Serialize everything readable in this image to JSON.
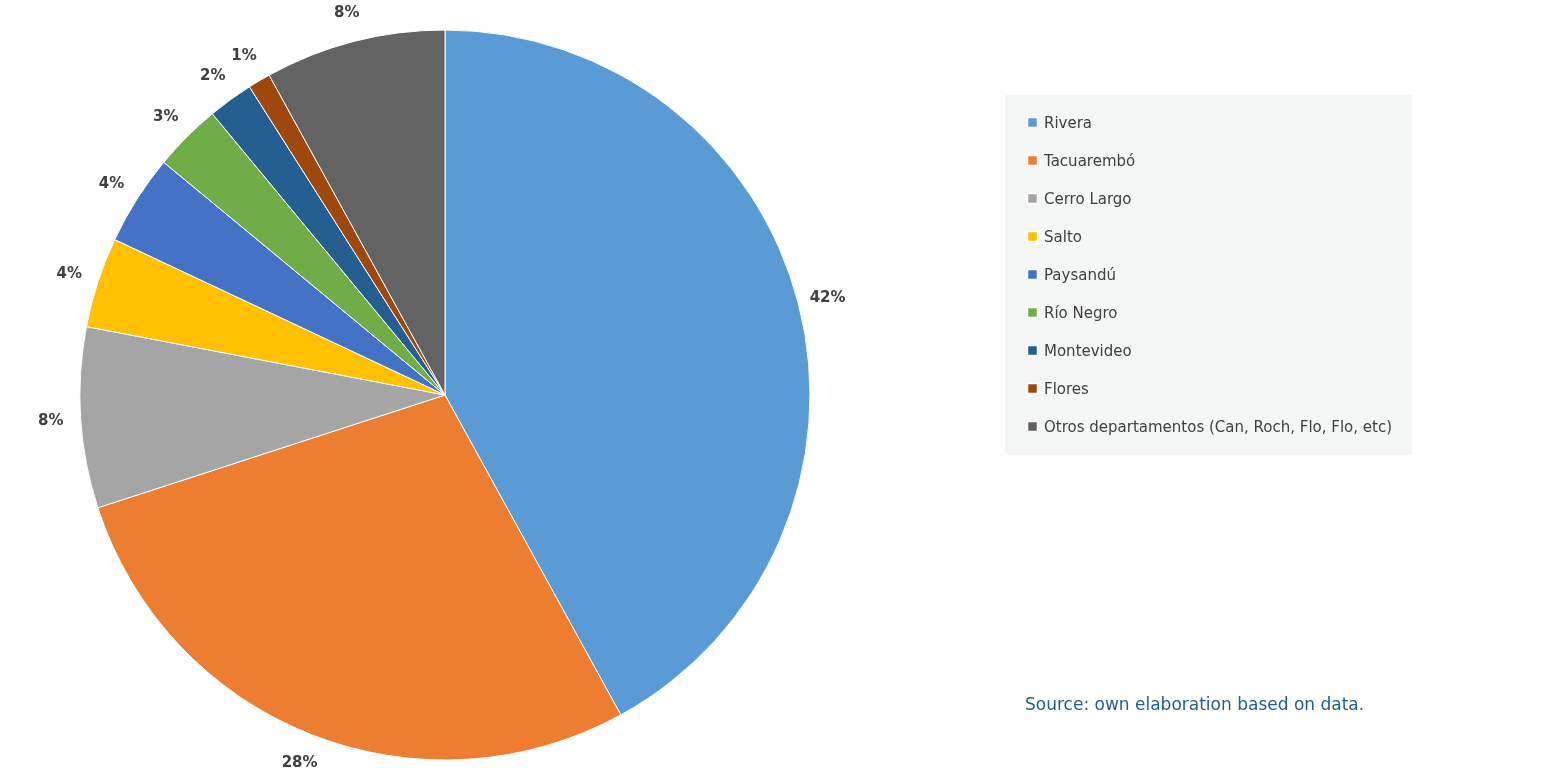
{
  "chart_data": {
    "type": "pie",
    "categories": [
      "Rivera",
      "Tacuarembó",
      "Cerro Largo",
      "Salto",
      "Paysandú",
      "Río Negro",
      "Montevideo",
      "Flores",
      "Otros departamentos (Can, Roch, Flo, Flo, etc)"
    ],
    "values": [
      42,
      28,
      8,
      4,
      4,
      3,
      2,
      1,
      8
    ],
    "value_labels": [
      "42%",
      "28%",
      "8%",
      "4%",
      "4%",
      "3%",
      "2%",
      "1%",
      "8%"
    ],
    "colors": [
      "#5b9bd5",
      "#ed7d31",
      "#a5a5a5",
      "#ffc000",
      "#4472c4",
      "#70ad47",
      "#255e91",
      "#9e480e",
      "#636363"
    ],
    "legend": "right",
    "annotations": [
      "Source: own elaboration based on data."
    ]
  }
}
